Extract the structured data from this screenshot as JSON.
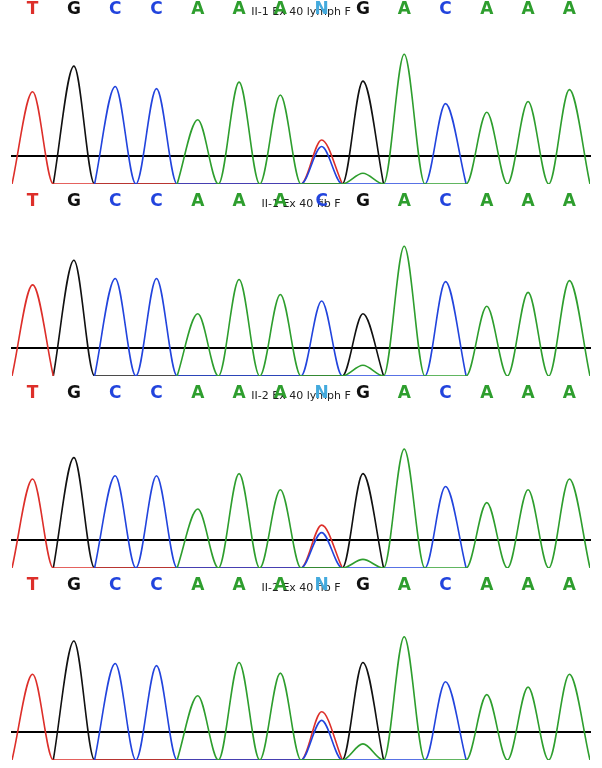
{
  "chart_data": [
    {
      "type": "line",
      "title": "II-1 Ex 40 lymph F",
      "categories": [
        "T",
        "G",
        "C",
        "C",
        "A",
        "A",
        "A",
        "N",
        "G",
        "A",
        "C",
        "A",
        "A",
        "A"
      ],
      "series": [
        {
          "name": "A",
          "color": "#2e9e2e",
          "values": [
            0,
            0,
            0,
            0,
            60,
            95,
            83,
            0,
            10,
            121,
            0,
            67,
            77,
            88
          ]
        },
        {
          "name": "C",
          "color": "#2244dd",
          "values": [
            0,
            0,
            91,
            89,
            0,
            0,
            0,
            35,
            0,
            0,
            75,
            0,
            0,
            0
          ]
        },
        {
          "name": "T",
          "color": "#dd2f2a",
          "values": [
            86,
            0,
            0,
            0,
            0,
            0,
            0,
            41,
            0,
            0,
            0,
            0,
            0,
            0
          ]
        },
        {
          "name": "G",
          "color": "#111111",
          "values": [
            0,
            110,
            0,
            0,
            0,
            0,
            0,
            0,
            96,
            0,
            0,
            0,
            0,
            0
          ]
        }
      ],
      "color": "#44aadd",
      "ylim": [
        0,
        150
      ],
      "tick_labels": "x",
      "grid": false
    },
    {
      "type": "line",
      "title": "II-1 Ex 40 fib F",
      "categories": [
        "T",
        "G",
        "C",
        "C",
        "A",
        "A",
        "A",
        "C",
        "G",
        "A",
        "C",
        "A",
        "A",
        "A"
      ],
      "series": [
        {
          "name": "A",
          "color": "#2e9e2e",
          "values": [
            0,
            0,
            0,
            0,
            58,
            90,
            76,
            0,
            10,
            121,
            0,
            65,
            78,
            89
          ]
        },
        {
          "name": "C",
          "color": "#2244dd",
          "values": [
            0,
            0,
            91,
            91,
            0,
            0,
            0,
            70,
            0,
            0,
            88,
            0,
            0,
            0
          ]
        },
        {
          "name": "T",
          "color": "#dd2f2a",
          "values": [
            85,
            0,
            0,
            0,
            0,
            0,
            0,
            0,
            0,
            0,
            0,
            0,
            0,
            0
          ]
        },
        {
          "name": "G",
          "color": "#111111",
          "values": [
            0,
            108,
            0,
            0,
            0,
            0,
            0,
            0,
            58,
            0,
            0,
            0,
            0,
            0
          ]
        }
      ],
      "color": "#44aadd",
      "ylim": [
        0,
        150
      ],
      "tick_labels": "x",
      "grid": false
    },
    {
      "type": "line",
      "title": "II-2 Ex 40 lymph F",
      "categories": [
        "T",
        "G",
        "C",
        "C",
        "A",
        "A",
        "A",
        "N",
        "G",
        "A",
        "C",
        "A",
        "A",
        "A"
      ],
      "series": [
        {
          "name": "A",
          "color": "#2e9e2e",
          "values": [
            0,
            0,
            0,
            0,
            55,
            88,
            73,
            0,
            8,
            111,
            0,
            61,
            73,
            83
          ]
        },
        {
          "name": "C",
          "color": "#2244dd",
          "values": [
            0,
            0,
            86,
            86,
            0,
            0,
            0,
            33,
            0,
            0,
            76,
            0,
            0,
            0
          ]
        },
        {
          "name": "T",
          "color": "#dd2f2a",
          "values": [
            83,
            0,
            0,
            0,
            0,
            0,
            0,
            40,
            0,
            0,
            0,
            0,
            0,
            0
          ]
        },
        {
          "name": "G",
          "color": "#111111",
          "values": [
            0,
            103,
            0,
            0,
            0,
            0,
            0,
            0,
            88,
            0,
            0,
            0,
            0,
            0
          ]
        }
      ],
      "color": "#44aadd",
      "ylim": [
        0,
        150
      ],
      "tick_labels": "x",
      "grid": false
    },
    {
      "type": "line",
      "title": "II-2 Ex 40 fib F",
      "categories": [
        "T",
        "G",
        "C",
        "C",
        "A",
        "A",
        "A",
        "N",
        "G",
        "A",
        "C",
        "A",
        "A",
        "A"
      ],
      "series": [
        {
          "name": "A",
          "color": "#2e9e2e",
          "values": [
            0,
            0,
            0,
            0,
            60,
            91,
            81,
            0,
            15,
            115,
            0,
            61,
            68,
            80
          ]
        },
        {
          "name": "C",
          "color": "#2244dd",
          "values": [
            0,
            0,
            90,
            88,
            0,
            0,
            0,
            37,
            0,
            0,
            73,
            0,
            0,
            0
          ]
        },
        {
          "name": "T",
          "color": "#dd2f2a",
          "values": [
            80,
            0,
            0,
            0,
            0,
            0,
            0,
            45,
            0,
            0,
            0,
            0,
            0,
            0
          ]
        },
        {
          "name": "G",
          "color": "#111111",
          "values": [
            0,
            111,
            0,
            0,
            0,
            0,
            0,
            0,
            91,
            0,
            0,
            0,
            0,
            0
          ]
        }
      ],
      "color": "#44aadd",
      "ylim": [
        0,
        150
      ],
      "tick_labels": "x",
      "grid": false
    }
  ]
}
